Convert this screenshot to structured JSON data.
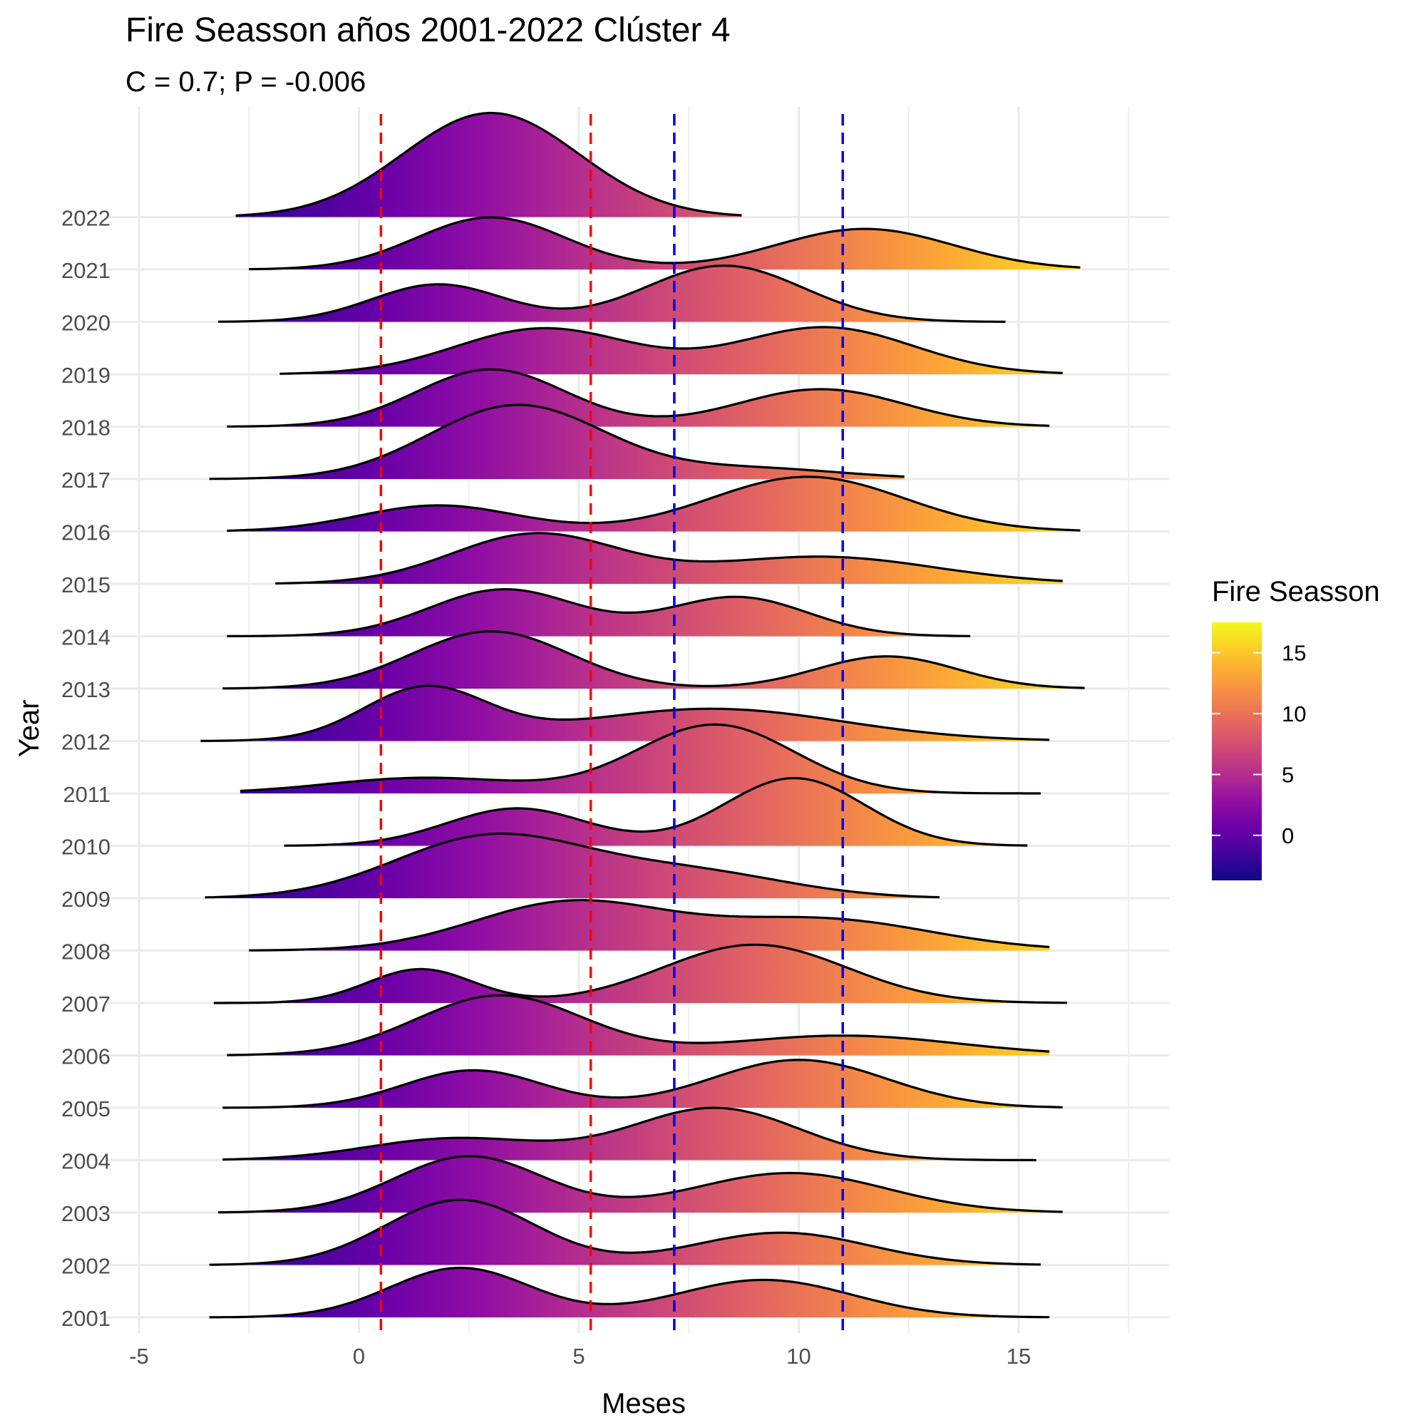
{
  "chart_data": {
    "type": "ridgeline",
    "title": "Fire Seasson años 2001-2022 Clúster 4",
    "subtitle": "C = 0.7; P = -0.006",
    "xlabel": "Meses",
    "ylabel": "Year",
    "xlim": [
      -5.5,
      18
    ],
    "x_ticks": [
      -5,
      0,
      5,
      10,
      15
    ],
    "x_tick_labels": [
      "-5",
      "0",
      "5",
      "10",
      "15"
    ],
    "grid": true,
    "vlines": [
      {
        "x": 0.5,
        "color": "#ff0000",
        "style": "dashed"
      },
      {
        "x": 5.27,
        "color": "#ff0000",
        "style": "dashed"
      },
      {
        "x": 7.17,
        "color": "#0000ff",
        "style": "dashed"
      },
      {
        "x": 11.0,
        "color": "#0000ff",
        "style": "dashed"
      }
    ],
    "legend": {
      "title": "Fire Seasson",
      "placement": "right",
      "colormap": "plasma",
      "range": [
        -3.7,
        17.5
      ],
      "ticks": [
        0,
        5,
        10,
        15
      ],
      "tick_labels": [
        "0",
        "5",
        "10",
        "15"
      ]
    },
    "series": [
      {
        "year": "2001",
        "x_range": [
          -3.4,
          15.7
        ],
        "peaks": [
          [
            2.3,
            0.95,
            1.6
          ],
          [
            9.2,
            0.72,
            2.0
          ]
        ]
      },
      {
        "year": "2002",
        "x_range": [
          -3.4,
          15.5
        ],
        "peaks": [
          [
            2.3,
            1.25,
            1.7
          ],
          [
            9.6,
            0.62,
            2.0
          ]
        ]
      },
      {
        "year": "2003",
        "x_range": [
          -3.2,
          16.0
        ],
        "peaks": [
          [
            2.5,
            1.08,
            1.7
          ],
          [
            9.8,
            0.76,
            2.2
          ]
        ]
      },
      {
        "year": "2004",
        "x_range": [
          -3.1,
          15.4
        ],
        "peaks": [
          [
            2.2,
            0.42,
            2.0
          ],
          [
            8.1,
            1.0,
            1.9
          ]
        ]
      },
      {
        "year": "2005",
        "x_range": [
          -3.1,
          16.0
        ],
        "peaks": [
          [
            2.6,
            0.72,
            1.6
          ],
          [
            10.0,
            0.92,
            2.0
          ]
        ]
      },
      {
        "year": "2006",
        "x_range": [
          -3.0,
          15.7
        ],
        "peaks": [
          [
            3.2,
            1.15,
            1.9
          ],
          [
            11.0,
            0.38,
            2.6
          ]
        ]
      },
      {
        "year": "2007",
        "x_range": [
          -3.3,
          16.1
        ],
        "peaks": [
          [
            1.4,
            0.65,
            1.2
          ],
          [
            9.0,
            1.12,
            2.1
          ]
        ]
      },
      {
        "year": "2008",
        "x_range": [
          -2.5,
          15.7
        ],
        "peaks": [
          [
            4.8,
            0.92,
            2.2
          ],
          [
            10.5,
            0.6,
            2.5
          ]
        ]
      },
      {
        "year": "2009",
        "x_range": [
          -3.5,
          13.2
        ],
        "peaks": [
          [
            3.0,
            1.18,
            2.2
          ],
          [
            7.6,
            0.48,
            2.2
          ]
        ]
      },
      {
        "year": "2010",
        "x_range": [
          -1.7,
          15.2
        ],
        "peaks": [
          [
            3.6,
            0.72,
            1.6
          ],
          [
            9.9,
            1.3,
            1.6
          ]
        ]
      },
      {
        "year": "2011",
        "x_range": [
          -2.7,
          15.5
        ],
        "peaks": [
          [
            1.5,
            0.3,
            2.2
          ],
          [
            8.1,
            1.32,
            1.8
          ]
        ]
      },
      {
        "year": "2012",
        "x_range": [
          -3.6,
          15.7
        ],
        "peaks": [
          [
            1.5,
            1.0,
            1.4
          ],
          [
            8.0,
            0.62,
            3.0
          ]
        ]
      },
      {
        "year": "2013",
        "x_range": [
          -3.1,
          16.5
        ],
        "peaks": [
          [
            3.0,
            1.1,
            1.8
          ],
          [
            12.0,
            0.62,
            1.6
          ]
        ]
      },
      {
        "year": "2014",
        "x_range": [
          -3.0,
          13.9
        ],
        "peaks": [
          [
            3.3,
            0.9,
            1.7
          ],
          [
            8.6,
            0.75,
            1.6
          ]
        ]
      },
      {
        "year": "2015",
        "x_range": [
          -1.9,
          16.0
        ],
        "peaks": [
          [
            4.0,
            0.95,
            1.9
          ],
          [
            10.5,
            0.52,
            2.6
          ]
        ]
      },
      {
        "year": "2016",
        "x_range": [
          -3.0,
          16.4
        ],
        "peaks": [
          [
            1.8,
            0.5,
            1.8
          ],
          [
            10.2,
            1.05,
            2.2
          ]
        ]
      },
      {
        "year": "2017",
        "x_range": [
          -3.4,
          12.4
        ],
        "peaks": [
          [
            3.6,
            1.42,
            2.0
          ],
          [
            9.0,
            0.2,
            2.0
          ]
        ]
      },
      {
        "year": "2018",
        "x_range": [
          -3.0,
          15.7
        ],
        "peaks": [
          [
            3.0,
            1.1,
            1.7
          ],
          [
            10.5,
            0.72,
            1.9
          ]
        ]
      },
      {
        "year": "2019",
        "x_range": [
          -1.8,
          16.0
        ],
        "peaks": [
          [
            4.2,
            0.88,
            2.0
          ],
          [
            10.6,
            0.9,
            2.0
          ]
        ]
      },
      {
        "year": "2020",
        "x_range": [
          -3.2,
          14.7
        ],
        "peaks": [
          [
            1.8,
            0.72,
            1.5
          ],
          [
            8.3,
            1.08,
            1.8
          ]
        ]
      },
      {
        "year": "2021",
        "x_range": [
          -2.5,
          16.4
        ],
        "peaks": [
          [
            3.0,
            1.0,
            1.7
          ],
          [
            11.5,
            0.78,
            2.0
          ]
        ]
      },
      {
        "year": "2022",
        "x_range": [
          -2.8,
          8.7
        ],
        "peaks": [
          [
            3.0,
            2.0,
            2.0
          ]
        ]
      }
    ]
  }
}
